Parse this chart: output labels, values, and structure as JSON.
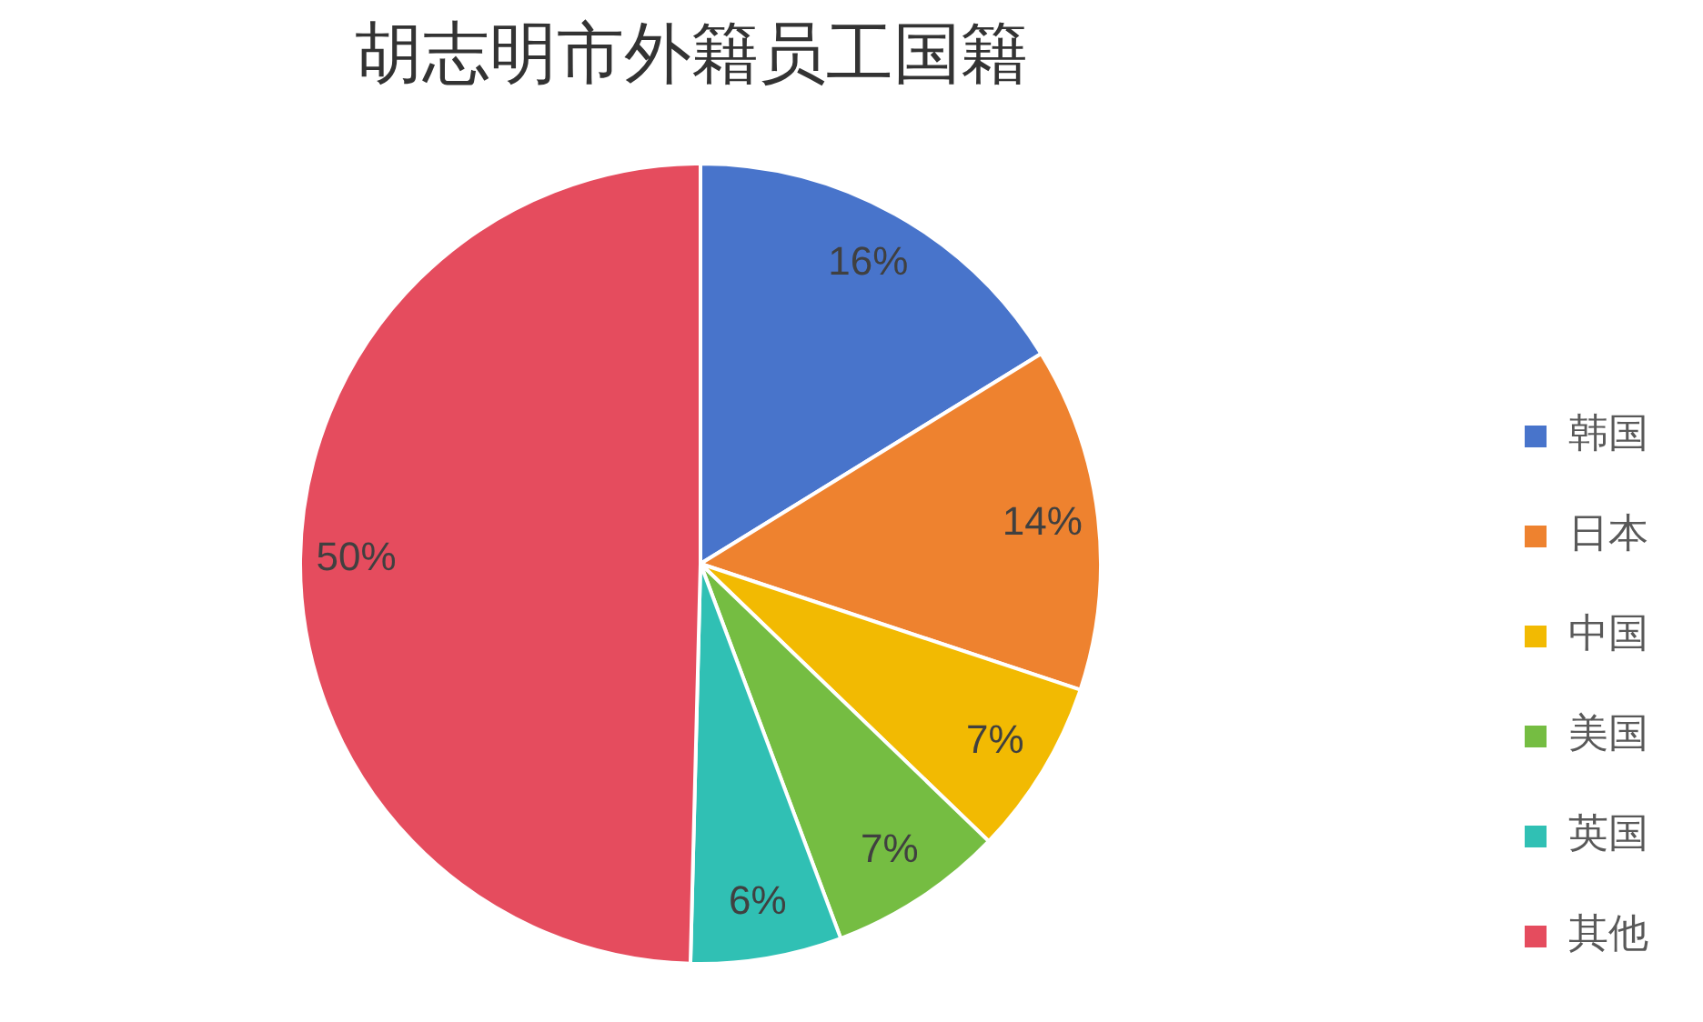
{
  "chart_data": {
    "type": "pie",
    "title": "胡志明市外籍员工国籍",
    "categories": [
      "韩国",
      "日本",
      "中国",
      "美国",
      "英国",
      "其他"
    ],
    "values": [
      16.2,
      13.9,
      7.1,
      7.1,
      6.1,
      49.6
    ],
    "colors": [
      "#4874cb",
      "#ee822f",
      "#f2ba02",
      "#75bd42",
      "#30c0b4",
      "#e54c5e"
    ],
    "value_labels": [
      "16%",
      "14%",
      "7%",
      "7%",
      "6%",
      "50%"
    ],
    "legend": "right"
  }
}
